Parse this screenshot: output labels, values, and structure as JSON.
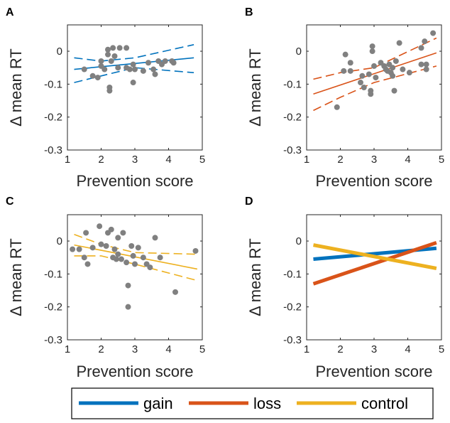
{
  "chart_data": [
    {
      "panel": "A",
      "type": "scatter",
      "series_name": "gain",
      "title": "",
      "xlabel": "Prevention score",
      "ylabel": "Δ mean RT",
      "xlim": [
        1,
        5
      ],
      "ylim": [
        -0.3,
        0.08
      ],
      "xticks": [
        "1",
        "2",
        "3",
        "4",
        "5"
      ],
      "yticks": [
        "-0.3",
        "-0.2",
        "-0.1",
        "0"
      ],
      "line_color": "#0072BD",
      "points": [
        [
          1.5,
          -0.055
        ],
        [
          1.75,
          -0.075
        ],
        [
          1.9,
          -0.08
        ],
        [
          2.0,
          -0.03
        ],
        [
          2.0,
          -0.045
        ],
        [
          2.1,
          -0.055
        ],
        [
          2.2,
          -0.01
        ],
        [
          2.2,
          0.005
        ],
        [
          2.25,
          -0.11
        ],
        [
          2.25,
          -0.12
        ],
        [
          2.3,
          -0.03
        ],
        [
          2.35,
          0.01
        ],
        [
          2.4,
          -0.015
        ],
        [
          2.5,
          -0.05
        ],
        [
          2.55,
          0.01
        ],
        [
          2.75,
          -0.05
        ],
        [
          2.75,
          0.01
        ],
        [
          2.85,
          -0.055
        ],
        [
          2.95,
          -0.04
        ],
        [
          2.95,
          -0.095
        ],
        [
          3.0,
          -0.055
        ],
        [
          3.25,
          -0.06
        ],
        [
          3.4,
          -0.035
        ],
        [
          3.55,
          -0.055
        ],
        [
          3.6,
          -0.07
        ],
        [
          3.7,
          -0.03
        ],
        [
          3.8,
          -0.04
        ],
        [
          3.9,
          -0.03
        ],
        [
          4.1,
          -0.03
        ],
        [
          4.15,
          -0.035
        ]
      ],
      "fit": {
        "x": [
          1.2,
          4.75
        ],
        "y": [
          -0.055,
          -0.02
        ]
      },
      "ci_upper": [
        [
          1.2,
          -0.02
        ],
        [
          2.0,
          -0.03
        ],
        [
          3.0,
          -0.02
        ],
        [
          4.75,
          0.02
        ]
      ],
      "ci_lower": [
        [
          1.2,
          -0.095
        ],
        [
          2.0,
          -0.075
        ],
        [
          3.0,
          -0.05
        ],
        [
          4.75,
          -0.065
        ]
      ]
    },
    {
      "panel": "B",
      "type": "scatter",
      "series_name": "loss",
      "title": "",
      "xlabel": "Prevention score",
      "ylabel": "Δ mean RT",
      "xlim": [
        1,
        5
      ],
      "ylim": [
        -0.3,
        0.08
      ],
      "xticks": [
        "1",
        "2",
        "3",
        "4",
        "5"
      ],
      "yticks": [
        "-0.3",
        "-0.2",
        "-0.1",
        "0"
      ],
      "line_color": "#D95319",
      "points": [
        [
          1.9,
          -0.17
        ],
        [
          2.1,
          -0.06
        ],
        [
          2.15,
          -0.01
        ],
        [
          2.3,
          -0.035
        ],
        [
          2.3,
          -0.06
        ],
        [
          2.6,
          -0.095
        ],
        [
          2.65,
          -0.075
        ],
        [
          2.7,
          -0.11
        ],
        [
          2.85,
          -0.07
        ],
        [
          2.9,
          -0.12
        ],
        [
          2.9,
          -0.13
        ],
        [
          2.95,
          0.0
        ],
        [
          2.95,
          0.015
        ],
        [
          3.0,
          -0.045
        ],
        [
          3.05,
          -0.08
        ],
        [
          3.2,
          -0.035
        ],
        [
          3.3,
          -0.045
        ],
        [
          3.35,
          -0.055
        ],
        [
          3.4,
          -0.06
        ],
        [
          3.45,
          -0.04
        ],
        [
          3.5,
          -0.065
        ],
        [
          3.55,
          -0.05
        ],
        [
          3.55,
          -0.075
        ],
        [
          3.6,
          -0.12
        ],
        [
          3.65,
          -0.03
        ],
        [
          3.75,
          0.025
        ],
        [
          3.85,
          -0.055
        ],
        [
          4.05,
          -0.065
        ],
        [
          4.4,
          -0.04
        ],
        [
          4.4,
          0.01
        ],
        [
          4.5,
          0.03
        ],
        [
          4.55,
          -0.04
        ],
        [
          4.55,
          -0.055
        ],
        [
          4.75,
          0.055
        ]
      ],
      "fit": {
        "x": [
          1.2,
          4.85
        ],
        "y": [
          -0.13,
          -0.005
        ]
      },
      "ci_upper": [
        [
          1.2,
          -0.085
        ],
        [
          2.0,
          -0.065
        ],
        [
          3.0,
          -0.05
        ],
        [
          4.85,
          0.04
        ]
      ],
      "ci_lower": [
        [
          1.2,
          -0.18
        ],
        [
          2.0,
          -0.14
        ],
        [
          3.0,
          -0.095
        ],
        [
          4.85,
          -0.045
        ]
      ]
    },
    {
      "panel": "C",
      "type": "scatter",
      "series_name": "control",
      "title": "",
      "xlabel": "Prevention score",
      "ylabel": "Δ mean RT",
      "xlim": [
        1,
        5
      ],
      "ylim": [
        -0.3,
        0.08
      ],
      "xticks": [
        "1",
        "2",
        "3",
        "4",
        "5"
      ],
      "yticks": [
        "-0.3",
        "-0.2",
        "-0.1",
        "0"
      ],
      "line_color": "#EDB120",
      "points": [
        [
          1.15,
          -0.025
        ],
        [
          1.35,
          -0.025
        ],
        [
          1.5,
          -0.05
        ],
        [
          1.55,
          0.025
        ],
        [
          1.6,
          -0.07
        ],
        [
          1.75,
          -0.02
        ],
        [
          1.95,
          0.045
        ],
        [
          2.0,
          -0.01
        ],
        [
          2.15,
          -0.015
        ],
        [
          2.2,
          0.025
        ],
        [
          2.3,
          0.035
        ],
        [
          2.35,
          -0.05
        ],
        [
          2.4,
          -0.025
        ],
        [
          2.45,
          -0.055
        ],
        [
          2.5,
          0.01
        ],
        [
          2.5,
          -0.04
        ],
        [
          2.6,
          -0.055
        ],
        [
          2.65,
          0.025
        ],
        [
          2.75,
          -0.065
        ],
        [
          2.8,
          -0.135
        ],
        [
          2.8,
          -0.2
        ],
        [
          2.9,
          -0.015
        ],
        [
          2.95,
          -0.045
        ],
        [
          3.0,
          -0.07
        ],
        [
          3.1,
          -0.02
        ],
        [
          3.25,
          -0.05
        ],
        [
          3.35,
          -0.07
        ],
        [
          3.45,
          -0.08
        ],
        [
          3.6,
          0.01
        ],
        [
          3.75,
          -0.05
        ],
        [
          4.2,
          -0.155
        ],
        [
          4.8,
          -0.03
        ]
      ],
      "fit": {
        "x": [
          1.2,
          4.85
        ],
        "y": [
          -0.012,
          -0.085
        ]
      },
      "ci_upper": [
        [
          1.2,
          0.02
        ],
        [
          2.0,
          -0.01
        ],
        [
          3.0,
          -0.035
        ],
        [
          4.85,
          -0.04
        ]
      ],
      "ci_lower": [
        [
          1.2,
          -0.045
        ],
        [
          2.0,
          -0.045
        ],
        [
          3.0,
          -0.07
        ],
        [
          4.85,
          -0.12
        ]
      ]
    },
    {
      "panel": "D",
      "type": "line",
      "title": "",
      "xlabel": "Prevention score",
      "ylabel": "Δ mean RT",
      "xlim": [
        1,
        5
      ],
      "ylim": [
        -0.3,
        0.08
      ],
      "xticks": [
        "1",
        "2",
        "3",
        "4",
        "5"
      ],
      "yticks": [
        "-0.3",
        "-0.2",
        "-0.1",
        "0"
      ],
      "series": [
        {
          "name": "gain",
          "color": "#0072BD",
          "x": [
            1.2,
            4.85
          ],
          "y": [
            -0.055,
            -0.022
          ]
        },
        {
          "name": "loss",
          "color": "#D95319",
          "x": [
            1.2,
            4.85
          ],
          "y": [
            -0.13,
            -0.005
          ]
        },
        {
          "name": "control",
          "color": "#EDB120",
          "x": [
            1.2,
            4.85
          ],
          "y": [
            -0.012,
            -0.083
          ]
        }
      ]
    }
  ],
  "legend": {
    "items": [
      {
        "label": "gain",
        "color": "#0072BD"
      },
      {
        "label": "loss",
        "color": "#D95319"
      },
      {
        "label": "control",
        "color": "#EDB120"
      }
    ]
  },
  "marker_color": "#808080"
}
